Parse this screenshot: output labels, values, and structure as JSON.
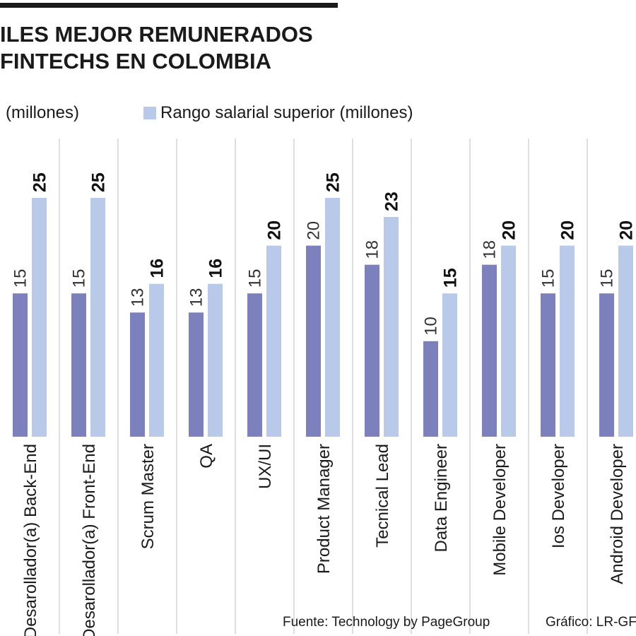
{
  "header": {
    "title_line1": "ILES MEJOR REMUNERADOS",
    "title_line2": "FINTECHS EN COLOMBIA"
  },
  "legend": {
    "left_text": "(millones)",
    "right_text": "Rango salarial superior  (millones)"
  },
  "footer": {
    "source": "Fuente: Technology by PageGroup",
    "credit": "Gráfico: LR-GF"
  },
  "colors": {
    "lower_bar": "#7c80bd",
    "upper_bar": "#b8c9e9",
    "divider": "#bfbfbf",
    "text": "#1a1a1a"
  },
  "chart_data": {
    "type": "bar",
    "categories": [
      "Desarollador(a) Back-End",
      "Desarollador(a) Front-End",
      "Scrum Master",
      "QA",
      "UX/UI",
      "Product Manager",
      "Tecnical Lead",
      "Data Engineer",
      "Mobile Developer",
      "Ios Developer",
      "Android Developer"
    ],
    "series": [
      {
        "values": [
          15,
          15,
          13,
          13,
          15,
          20,
          18,
          10,
          18,
          15,
          15
        ]
      },
      {
        "name": "Rango salarial superior  (millones)",
        "values": [
          25,
          25,
          16,
          16,
          20,
          25,
          23,
          15,
          20,
          20,
          20
        ]
      }
    ],
    "ylim": [
      0,
      25
    ],
    "grid": false,
    "legend_position": "top-left"
  }
}
